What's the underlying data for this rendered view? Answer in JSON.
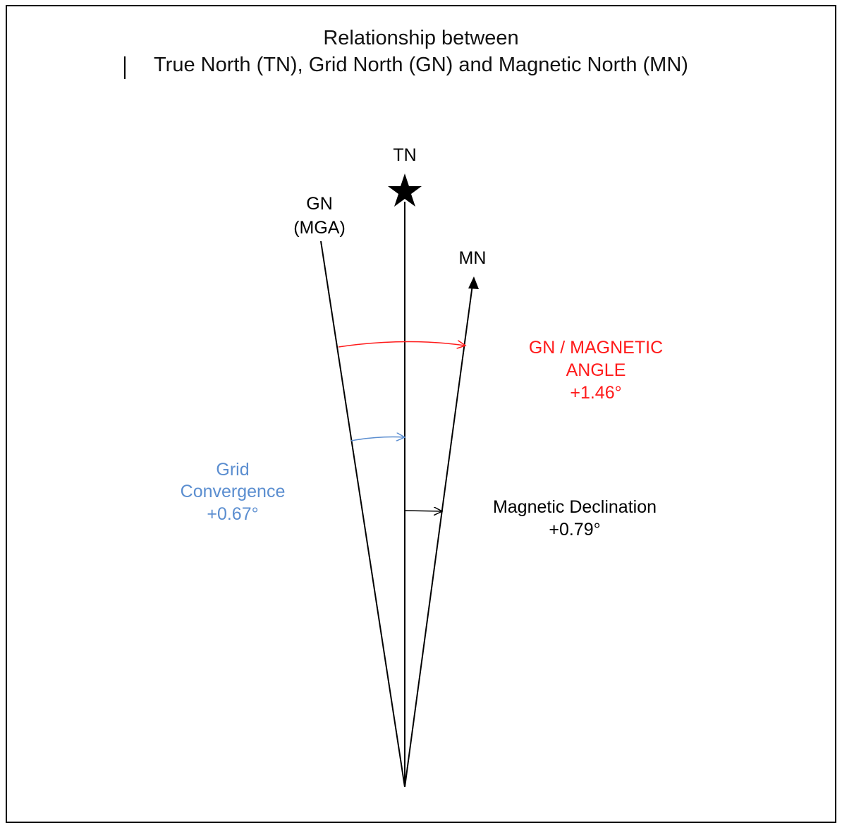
{
  "title": {
    "line1": "Relationship between",
    "line2": "True North (TN), Grid North (GN) and Magnetic North (MN)"
  },
  "labels": {
    "tn": "TN",
    "gn_line1": "GN",
    "gn_line2": "(MGA)",
    "mn": "MN",
    "gn_magnetic_line1": "GN / MAGNETIC",
    "gn_magnetic_line2": "ANGLE",
    "gn_magnetic_value": "+1.46°",
    "grid_conv_line1": "Grid",
    "grid_conv_line2": "Convergence",
    "grid_conv_value": "+0.67°",
    "mag_decl_line1": "Magnetic Declination",
    "mag_decl_value": "+0.79°"
  },
  "colors": {
    "gn_magnetic": "#ff1a1a",
    "grid_convergence": "#5b8ed0",
    "magnetic_declination": "#000000",
    "lines": "#000000"
  },
  "icons": {
    "true_north_marker": "star-icon",
    "magnetic_north_marker": "arrowhead-icon"
  }
}
